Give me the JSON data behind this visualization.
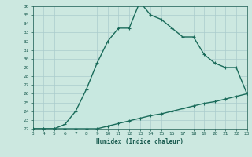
{
  "xlabel": "Humidex (Indice chaleur)",
  "x_upper": [
    3,
    4,
    5,
    6,
    7,
    8,
    9,
    10,
    11,
    12,
    13,
    14,
    15,
    16,
    17,
    18,
    19,
    20,
    21,
    22,
    23
  ],
  "y_upper": [
    22,
    22,
    22,
    22.5,
    24,
    26.5,
    29.5,
    32,
    33.5,
    33.5,
    36.5,
    35,
    34.5,
    33.5,
    32.5,
    32.5,
    30.5,
    29.5,
    29,
    29,
    26
  ],
  "x_lower": [
    3,
    4,
    5,
    6,
    7,
    8,
    9,
    10,
    11,
    12,
    13,
    14,
    15,
    16,
    17,
    18,
    19,
    20,
    21,
    22,
    23
  ],
  "y_lower": [
    22,
    22,
    22,
    22,
    22,
    22,
    22,
    22.3,
    22.6,
    22.9,
    23.2,
    23.5,
    23.7,
    24.0,
    24.3,
    24.6,
    24.9,
    25.1,
    25.4,
    25.7,
    26.0
  ],
  "ylim": [
    22,
    36
  ],
  "xlim": [
    3,
    23
  ],
  "yticks": [
    22,
    23,
    24,
    25,
    26,
    27,
    28,
    29,
    30,
    31,
    32,
    33,
    34,
    35,
    36
  ],
  "xticks": [
    3,
    4,
    5,
    6,
    7,
    8,
    9,
    10,
    11,
    12,
    13,
    14,
    15,
    16,
    17,
    18,
    19,
    20,
    21,
    22,
    23
  ],
  "line_color": "#1a6b5a",
  "fill_color": "#c8e8e0",
  "bg_color": "#cce8e0",
  "grid_color": "#aacccc",
  "font_color": "#1a5c50",
  "marker": "+",
  "marker_size": 3,
  "line_width": 1.0
}
